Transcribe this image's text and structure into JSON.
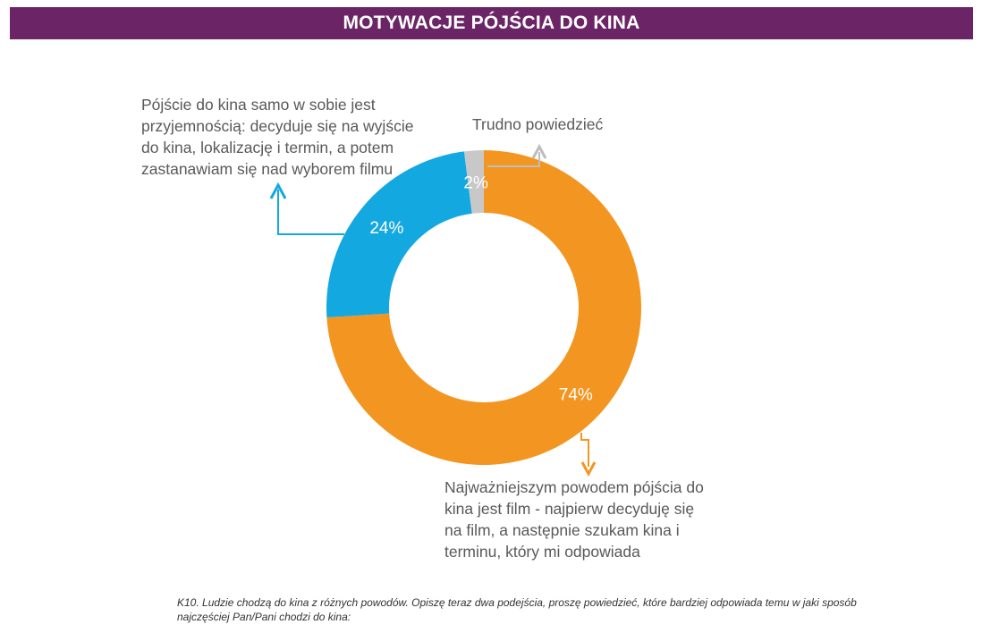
{
  "header": {
    "title": "MOTYWACJE PÓJŚCIA DO KINA"
  },
  "callouts": {
    "cinema_first": [
      "Pójście do kina samo w sobie jest",
      "przyjemnością: decyduje się na wyjście",
      "do kina, lokalizację i termin, a potem",
      "zastanawiam się nad wyborem filmu"
    ],
    "hard_to_say": "Trudno powiedzieć",
    "film_first": [
      "Najważniejszym powodem pójścia do",
      "kina jest film - najpierw decyduję się",
      "na film, a następnie szukam kina i",
      "terminu, który mi odpowiada"
    ]
  },
  "footnote": "K10. Ludzie chodzą do kina z różnych powodów. Opiszę teraz dwa podejścia, proszę powiedzieć, które bardziej odpowiada temu w jaki sposób najczęściej Pan/Pani chodzi do kina:",
  "chart_data": {
    "type": "pie",
    "variant": "donut",
    "slices": [
      {
        "label_ref": "film_first",
        "value": 74,
        "label": "74%",
        "color": "#f39621"
      },
      {
        "label_ref": "cinema_first",
        "value": 24,
        "label": "24%",
        "color": "#14a8e0"
      },
      {
        "label_ref": "hard_to_say",
        "value": 2,
        "label": "2%",
        "color": "#c8c8c8"
      }
    ],
    "start": "12 o'clock, clockwise"
  }
}
